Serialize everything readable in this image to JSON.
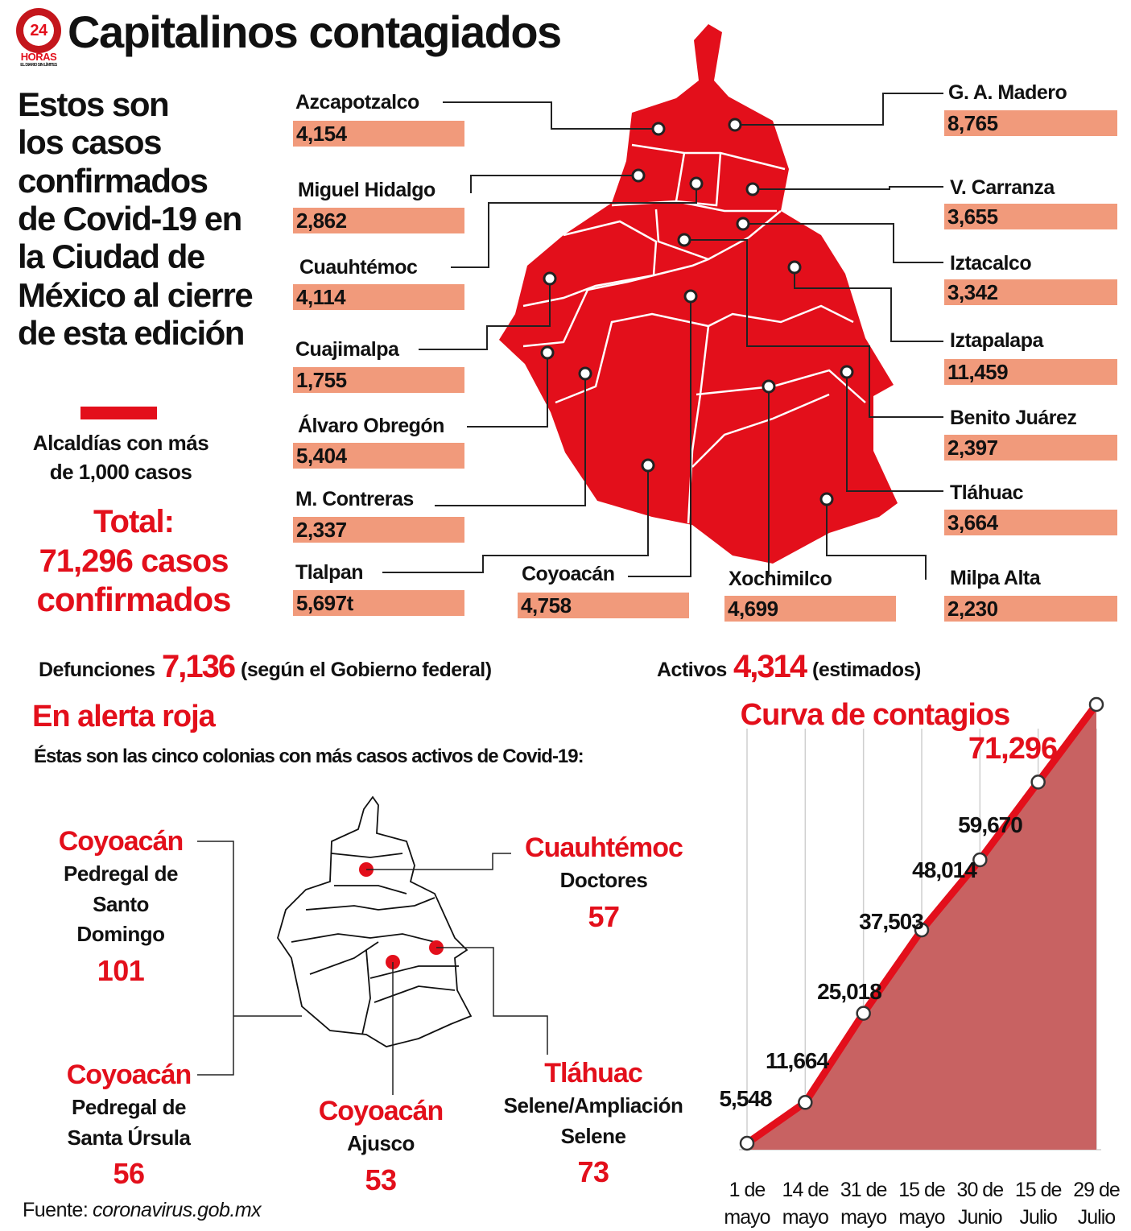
{
  "header": {
    "title": "Capitalinos contagiados",
    "logo": {
      "number": "24",
      "name": "HORAS",
      "tagline": "EL DIARIO SIN LÍMITES"
    }
  },
  "intro": [
    "Estos son",
    "los casos",
    "confirmados",
    "de Covid-19 en",
    "la Ciudad de",
    "México al cierre",
    "de esta edición"
  ],
  "legend": [
    "Alcaldías con más",
    "de 1,000 casos"
  ],
  "total": [
    "Total:",
    "71,296 casos",
    "confirmados"
  ],
  "alcaldias": [
    {
      "name": "Azcapotzalco",
      "value": "4,154"
    },
    {
      "name": "Miguel Hidalgo",
      "value": "2,862"
    },
    {
      "name": "Cuauhtémoc",
      "value": "4,114"
    },
    {
      "name": "Cuajimalpa",
      "value": "1,755"
    },
    {
      "name": "Álvaro Obregón",
      "value": "5,404"
    },
    {
      "name": "M. Contreras",
      "value": "2,337"
    },
    {
      "name": "Tlalpan",
      "value": "5,697t"
    },
    {
      "name": "Coyoacán",
      "value": "4,758"
    },
    {
      "name": "Xochimilco",
      "value": "4,699"
    },
    {
      "name": "G. A. Madero",
      "value": "8,765"
    },
    {
      "name": "V. Carranza",
      "value": "3,655"
    },
    {
      "name": "Iztacalco",
      "value": "3,342"
    },
    {
      "name": "Iztapalapa",
      "value": "11,459"
    },
    {
      "name": "Benito Juárez",
      "value": "2,397"
    },
    {
      "name": "Tláhuac",
      "value": "3,664"
    },
    {
      "name": "Milpa Alta",
      "value": "2,230"
    }
  ],
  "stats": {
    "deaths": {
      "label": "Defunciones",
      "value": "7,136",
      "note": "(según el Gobierno federal)"
    },
    "active": {
      "label": "Activos",
      "value": "4,314",
      "note": "(estimados)"
    }
  },
  "alert": {
    "title": "En alerta roja",
    "subtitle": "Éstas son las cinco colonias con más casos activos de Covid-19:",
    "items": [
      {
        "alcaldia": "Coyoacán",
        "colonia": [
          "Pedregal de",
          "Santo",
          "Domingo"
        ],
        "value": "101"
      },
      {
        "alcaldia": "Cuauhtémoc",
        "colonia": [
          "Doctores"
        ],
        "value": "57"
      },
      {
        "alcaldia": "Coyoacán",
        "colonia": [
          "Pedregal de",
          "Santa Úrsula"
        ],
        "value": "56"
      },
      {
        "alcaldia": "Coyoacán",
        "colonia": [
          "Ajusco"
        ],
        "value": "53"
      },
      {
        "alcaldia": "Tláhuac",
        "colonia": [
          "Selene/Ampliación",
          "Selene"
        ],
        "value": "73"
      }
    ]
  },
  "chart_data": {
    "type": "line",
    "title": "Curva de contagios",
    "categories": [
      "1 de mayo",
      "14 de mayo",
      "31 de mayo",
      "15 de mayo",
      "30 de Junio",
      "15 de Julio",
      "29 de Julio"
    ],
    "values": [
      5548,
      11664,
      25018,
      37503,
      48014,
      59670,
      71296
    ],
    "value_labels": [
      "5,548",
      "11,664",
      "25,018",
      "37,503",
      "48,014",
      "59,670",
      "71,296"
    ],
    "color": "#e30f1b",
    "area_color": "#c86262",
    "grid": true
  },
  "source": {
    "label": "Fuente:",
    "value": "coronavirus.gob.mx"
  }
}
